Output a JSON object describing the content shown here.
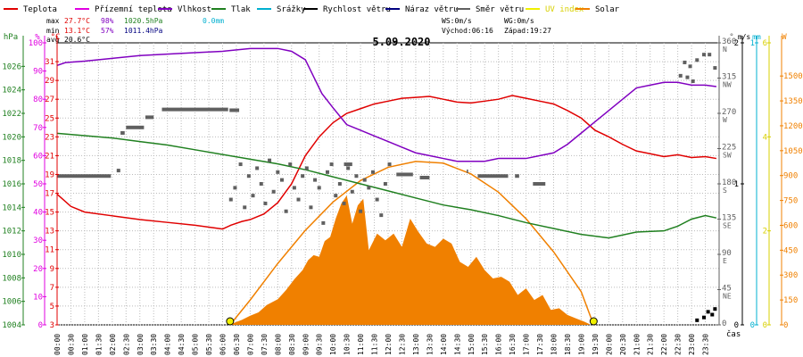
{
  "chart_data": {
    "type": "line",
    "title": "5.09.2020",
    "legend": [
      {
        "name": "Teplota",
        "color": "#e00000"
      },
      {
        "name": "Přízemní teplota",
        "color": "#e000e0"
      },
      {
        "name": "Vlhkost",
        "color": "#8000c0"
      },
      {
        "name": "Tlak",
        "color": "#208020"
      },
      {
        "name": "Srážky",
        "color": "#00b0d0"
      },
      {
        "name": "Rychlost větru",
        "color": "#000000"
      },
      {
        "name": "Náraz větru",
        "color": "#000080"
      },
      {
        "name": "Směr větru",
        "color": "#606060"
      },
      {
        "name": "UV index",
        "color": "#f0f000"
      },
      {
        "name": "Solar",
        "color": "#f08000"
      }
    ],
    "stats": {
      "max_label": "max",
      "max_temp": "27.7°C",
      "max_hum": "98%",
      "max_press": "1020.5hPa",
      "max_rain": "0.0mm",
      "min_label": "min",
      "min_temp": "13.1°C",
      "min_hum": "57%",
      "min_press": "1011.4hPa",
      "avg_label": "avg",
      "avg_temp": "20.6°C"
    },
    "wind_info": {
      "ws": "WS:0m/s",
      "wg": "WG:0m/s"
    },
    "sun_info": {
      "sunrise": "Východ:06:16",
      "sunset": "Západ:19:27"
    },
    "axis_units": {
      "press": "hPa",
      "hum": "%",
      "temp": "°C",
      "dir": "°",
      "wind": "m/s",
      "rain": "mm",
      "uv": "",
      "solar": "W",
      "time": "čas"
    },
    "axes": {
      "press": {
        "min": 1004,
        "max": 1028,
        "ticks": [
          "1004",
          "1006",
          "1008",
          "1010",
          "1012",
          "1014",
          "1016",
          "1018",
          "1020",
          "1022",
          "1024",
          "1026"
        ]
      },
      "hum": {
        "min": 0,
        "max": 100,
        "ticks": [
          "0",
          "10",
          "20",
          "30",
          "40",
          "50",
          "60",
          "70",
          "80",
          "90",
          "100"
        ]
      },
      "temp": {
        "min": 3,
        "max": 33,
        "ticks": [
          "3",
          "5",
          "7",
          "9",
          "11",
          "13",
          "15",
          "17",
          "19",
          "21",
          "23",
          "25",
          "27",
          "29",
          "31"
        ]
      },
      "dir": {
        "min": 0,
        "max": 360,
        "ticks": [
          "0",
          "45 NE",
          "90 E",
          "135 SE",
          "180 S",
          "225 SW",
          "270 W",
          "315 NW",
          "360 N"
        ]
      },
      "wind": {
        "min": 0,
        "max": 2,
        "ticks": [
          "0",
          "1",
          "2"
        ]
      },
      "rain": {
        "min": 0,
        "max": 1,
        "ticks": [
          "0",
          "1"
        ]
      },
      "uv": {
        "min": 0,
        "max": 6,
        "ticks": [
          "0",
          "2",
          "4",
          "6"
        ]
      },
      "solar": {
        "min": 0,
        "max": 1700,
        "ticks": [
          "0",
          "150",
          "300",
          "450",
          "600",
          "750",
          "900",
          "1050",
          "1200",
          "1350",
          "1500"
        ]
      }
    },
    "x_ticks": [
      "00:00",
      "00:30",
      "01:00",
      "01:30",
      "02:00",
      "02:30",
      "03:00",
      "03:30",
      "04:00",
      "04:30",
      "05:00",
      "05:30",
      "06:00",
      "06:30",
      "07:00",
      "07:30",
      "08:00",
      "08:30",
      "09:00",
      "09:30",
      "10:00",
      "10:30",
      "11:00",
      "11:30",
      "12:00",
      "12:30",
      "13:00",
      "13:30",
      "14:00",
      "14:30",
      "15:00",
      "15:30",
      "16:00",
      "16:30",
      "17:00",
      "17:30",
      "18:00",
      "18:30",
      "19:00",
      "19:30",
      "20:00",
      "20:30",
      "21:00",
      "21:30",
      "22:00",
      "22:30",
      "23:00",
      "23:30"
    ],
    "series": [
      {
        "name": "Teplota",
        "axis": "temp",
        "color": "#e00000",
        "x": [
          0,
          0.5,
          1,
          2,
          3,
          4,
          5,
          5.5,
          6,
          6.3,
          6.7,
          7,
          7.5,
          8,
          8.5,
          9,
          9.5,
          10,
          10.5,
          11,
          11.5,
          12,
          12.5,
          13,
          13.5,
          14,
          14.5,
          15,
          15.5,
          16,
          16.5,
          17,
          17.5,
          18,
          18.5,
          19,
          19.5,
          20,
          20.5,
          21,
          21.5,
          22,
          22.5,
          23,
          23.5,
          23.9
        ],
        "y": [
          16.9,
          15.6,
          15,
          14.6,
          14.2,
          13.9,
          13.6,
          13.4,
          13.2,
          13.6,
          14,
          14.2,
          14.8,
          16,
          18,
          21,
          23,
          24.5,
          25.5,
          26,
          26.5,
          26.8,
          27.1,
          27.2,
          27.3,
          27,
          26.7,
          26.6,
          26.8,
          27,
          27.4,
          27.1,
          26.8,
          26.5,
          25.8,
          25,
          23.7,
          23,
          22.2,
          21.5,
          21.2,
          20.9,
          21.1,
          20.8,
          20.9,
          20.7
        ]
      },
      {
        "name": "Vlhkost",
        "axis": "hum",
        "color": "#8000c0",
        "x": [
          0,
          0.3,
          1,
          2,
          3,
          4,
          5,
          6,
          7,
          7.5,
          8,
          8.5,
          9,
          9.3,
          9.6,
          10,
          10.5,
          11,
          11.5,
          12,
          12.5,
          13,
          13.5,
          14,
          14.5,
          15,
          15.5,
          16,
          16.5,
          17,
          17.5,
          18,
          18.5,
          19,
          19.5,
          20,
          20.5,
          21,
          21.5,
          22,
          22.5,
          23,
          23.5,
          23.9
        ],
        "y": [
          92,
          93,
          93.5,
          94.5,
          95.5,
          96,
          96.5,
          97,
          98,
          98,
          98,
          97,
          94,
          88,
          82,
          77,
          71,
          69,
          67,
          65,
          63,
          61,
          60,
          59,
          58,
          58,
          58,
          59,
          59,
          59,
          60,
          61,
          64,
          68,
          72,
          76,
          80,
          84,
          85,
          86,
          86,
          85,
          85,
          84.5
        ]
      },
      {
        "name": "Tlak",
        "axis": "press",
        "color": "#208020",
        "x": [
          0,
          1,
          2,
          3,
          4,
          5,
          6,
          7,
          8,
          9,
          10,
          11,
          12,
          13,
          14,
          15,
          16,
          17,
          18,
          19,
          20,
          21,
          22,
          22.5,
          23,
          23.5,
          23.9
        ],
        "y": [
          1020.3,
          1020.1,
          1019.9,
          1019.6,
          1019.3,
          1018.9,
          1018.5,
          1018.1,
          1017.7,
          1017.2,
          1016.6,
          1016,
          1015.4,
          1014.8,
          1014.2,
          1013.8,
          1013.3,
          1012.7,
          1012.2,
          1011.7,
          1011.4,
          1011.9,
          1012,
          1012.4,
          1013,
          1013.3,
          1013.1
        ]
      }
    ],
    "wind_direction": {
      "axis": "dir",
      "color": "#606060",
      "segments": [
        {
          "x0": 0.0,
          "x1": 3.9,
          "y": 190
        },
        {
          "x0": 4.6,
          "x1": 4.9,
          "y": 245
        },
        {
          "x0": 5.0,
          "x1": 6.3,
          "y": 252
        },
        {
          "x0": 6.4,
          "x1": 7.0,
          "y": 265
        },
        {
          "x0": 7.6,
          "x1": 12.4,
          "y": 275
        },
        {
          "x0": 12.5,
          "x1": 13.2,
          "y": 274
        },
        {
          "x0": 20.8,
          "x1": 21.4,
          "y": 205
        },
        {
          "x0": 24.6,
          "x1": 25.8,
          "y": 192
        },
        {
          "x0": 26.3,
          "x1": 27.0,
          "y": 188
        },
        {
          "x0": 29.7,
          "x1": 29.8,
          "y": 196
        },
        {
          "x0": 30.5,
          "x1": 32.7,
          "y": 190
        },
        {
          "x0": 33.2,
          "x1": 33.5,
          "y": 190
        },
        {
          "x0": 34.5,
          "x1": 35.4,
          "y": 180
        }
      ]
    },
    "wind_direction_points": {
      "x": [
        4.45,
        12.6,
        12.9,
        13.3,
        13.6,
        13.9,
        14.2,
        14.5,
        14.8,
        15.1,
        15.4,
        15.7,
        16.0,
        16.3,
        16.6,
        16.9,
        17.2,
        17.5,
        17.8,
        18.1,
        18.4,
        18.7,
        19.0,
        19.3,
        19.6,
        19.9,
        20.2,
        20.5,
        20.8,
        21.1,
        21.4,
        21.7,
        22.0,
        22.3,
        22.6,
        22.9,
        23.2,
        23.5,
        23.8,
        24.1
      ],
      "y": [
        197,
        160,
        175,
        205,
        150,
        190,
        165,
        200,
        180,
        155,
        210,
        170,
        195,
        185,
        145,
        205,
        175,
        160,
        190,
        200,
        150,
        185,
        175,
        130,
        195,
        205,
        165,
        180,
        155,
        200,
        170,
        190,
        145,
        185,
        175,
        195,
        160,
        140,
        180,
        205
      ]
    },
    "wind_speed": {
      "axis": "wind",
      "color": "#000000",
      "points_x": [
        23.2,
        23.45,
        23.6,
        23.75,
        23.85
      ],
      "points_y": [
        0.02,
        0.04,
        0.08,
        0.06,
        0.1
      ]
    },
    "solar": {
      "axis": "solar",
      "color": "#f08000",
      "x": [
        6.3,
        6.7,
        7,
        7.3,
        7.6,
        8,
        8.3,
        8.6,
        8.9,
        9.1,
        9.3,
        9.5,
        9.7,
        9.9,
        10.1,
        10.3,
        10.5,
        10.7,
        10.9,
        11.1,
        11.3,
        11.6,
        11.9,
        12.2,
        12.5,
        12.8,
        13.1,
        13.4,
        13.7,
        14,
        14.3,
        14.6,
        14.9,
        15.2,
        15.5,
        15.8,
        16.1,
        16.4,
        16.7,
        17,
        17.3,
        17.6,
        17.9,
        18.2,
        18.5,
        18.8,
        19.1,
        19.3
      ],
      "y": [
        5,
        30,
        55,
        75,
        120,
        155,
        210,
        275,
        330,
        390,
        420,
        410,
        505,
        530,
        640,
        730,
        780,
        610,
        720,
        760,
        450,
        550,
        510,
        550,
        470,
        640,
        560,
        490,
        470,
        520,
        490,
        380,
        350,
        410,
        330,
        280,
        290,
        260,
        180,
        220,
        150,
        180,
        90,
        100,
        60,
        40,
        20,
        5
      ]
    },
    "solar_theoretical": {
      "x": [
        6.27,
        7,
        8,
        9,
        10,
        11,
        12,
        13,
        14,
        15,
        16,
        17,
        18,
        19,
        19.45
      ],
      "y": [
        0,
        150,
        370,
        570,
        740,
        870,
        950,
        985,
        975,
        910,
        800,
        640,
        440,
        200,
        0
      ]
    },
    "sun_markers": {
      "sunrise_x": 6.27,
      "sunset_x": 19.45,
      "color": "#f0f000"
    }
  }
}
